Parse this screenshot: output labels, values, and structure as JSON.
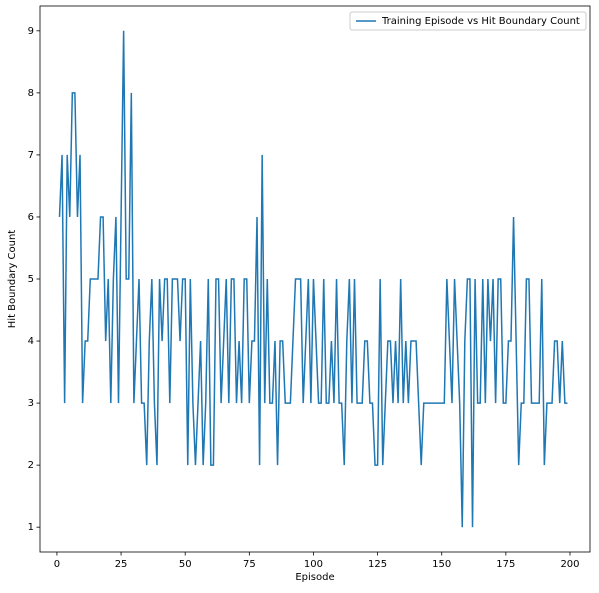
{
  "chart_data": {
    "type": "line",
    "xlabel": "Episode",
    "ylabel": "Hit Boundary Count",
    "legend": "upper right",
    "x": [
      1,
      2,
      3,
      4,
      5,
      6,
      7,
      8,
      9,
      10,
      11,
      12,
      13,
      14,
      15,
      16,
      17,
      18,
      19,
      20,
      21,
      22,
      23,
      24,
      25,
      26,
      27,
      28,
      29,
      30,
      31,
      32,
      33,
      34,
      35,
      36,
      37,
      38,
      39,
      40,
      41,
      42,
      43,
      44,
      45,
      46,
      47,
      48,
      49,
      50,
      51,
      52,
      53,
      54,
      55,
      56,
      57,
      58,
      59,
      60,
      61,
      62,
      63,
      64,
      65,
      66,
      67,
      68,
      69,
      70,
      71,
      72,
      73,
      74,
      75,
      76,
      77,
      78,
      79,
      80,
      81,
      82,
      83,
      84,
      85,
      86,
      87,
      88,
      89,
      90,
      91,
      92,
      93,
      94,
      95,
      96,
      97,
      98,
      99,
      100,
      101,
      102,
      103,
      104,
      105,
      106,
      107,
      108,
      109,
      110,
      111,
      112,
      113,
      114,
      115,
      116,
      117,
      118,
      119,
      120,
      121,
      122,
      123,
      124,
      125,
      126,
      127,
      128,
      129,
      130,
      131,
      132,
      133,
      134,
      135,
      136,
      137,
      138,
      139,
      140,
      141,
      142,
      143,
      144,
      145,
      146,
      147,
      148,
      149,
      150,
      151,
      152,
      153,
      154,
      155,
      156,
      157,
      158,
      159,
      160,
      161,
      162,
      163,
      164,
      165,
      166,
      167,
      168,
      169,
      170,
      171,
      172,
      173,
      174,
      175,
      176,
      177,
      178,
      179,
      180,
      181,
      182,
      183,
      184,
      185,
      186,
      187,
      188,
      189,
      190,
      191,
      192,
      193,
      194,
      195,
      196,
      197,
      198,
      199
    ],
    "series": [
      {
        "name": "Training Episode vs Hit Boundary Count",
        "color": "#1f77b4",
        "values": [
          6,
          7,
          3,
          7,
          6,
          8,
          8,
          6,
          7,
          3,
          4,
          4,
          5,
          5,
          5,
          5,
          6,
          6,
          4,
          5,
          3,
          5,
          6,
          3,
          6,
          9,
          5,
          5,
          8,
          3,
          4,
          5,
          3,
          3,
          2,
          4,
          5,
          3,
          2,
          5,
          4,
          5,
          5,
          3,
          5,
          5,
          5,
          4,
          5,
          5,
          2,
          5,
          3,
          2,
          3,
          4,
          2,
          3,
          5,
          2,
          2,
          5,
          5,
          3,
          4,
          5,
          3,
          5,
          5,
          3,
          4,
          3,
          5,
          5,
          3,
          4,
          4,
          6,
          2,
          7,
          3,
          5,
          3,
          3,
          4,
          2,
          4,
          4,
          3,
          3,
          3,
          4,
          5,
          5,
          5,
          3,
          4,
          5,
          3,
          5,
          4,
          3,
          3,
          5,
          3,
          3,
          4,
          3,
          5,
          3,
          3,
          2,
          4,
          5,
          3,
          5,
          3,
          3,
          3,
          4,
          4,
          3,
          3,
          2,
          2,
          5,
          2,
          3,
          4,
          4,
          3,
          4,
          3,
          5,
          3,
          4,
          3,
          4,
          4,
          4,
          3,
          2,
          3,
          3,
          3,
          3,
          3,
          3,
          3,
          3,
          3,
          5,
          4,
          3,
          5,
          4,
          3,
          1,
          4,
          5,
          5,
          1,
          5,
          3,
          3,
          5,
          3,
          5,
          4,
          5,
          3,
          5,
          5,
          3,
          3,
          4,
          4,
          6,
          4,
          2,
          3,
          3,
          5,
          5,
          3,
          3,
          3,
          3,
          5,
          2,
          3,
          3,
          3,
          4,
          4,
          3,
          4,
          3,
          3
        ]
      }
    ],
    "xlim": [
      -6.6,
      207.8
    ],
    "xticks": [
      0,
      25,
      50,
      75,
      100,
      125,
      150,
      175,
      200
    ],
    "ylim": [
      0.6,
      9.4
    ],
    "yticks": [
      1,
      2,
      3,
      4,
      5,
      6,
      7,
      8,
      9
    ]
  }
}
